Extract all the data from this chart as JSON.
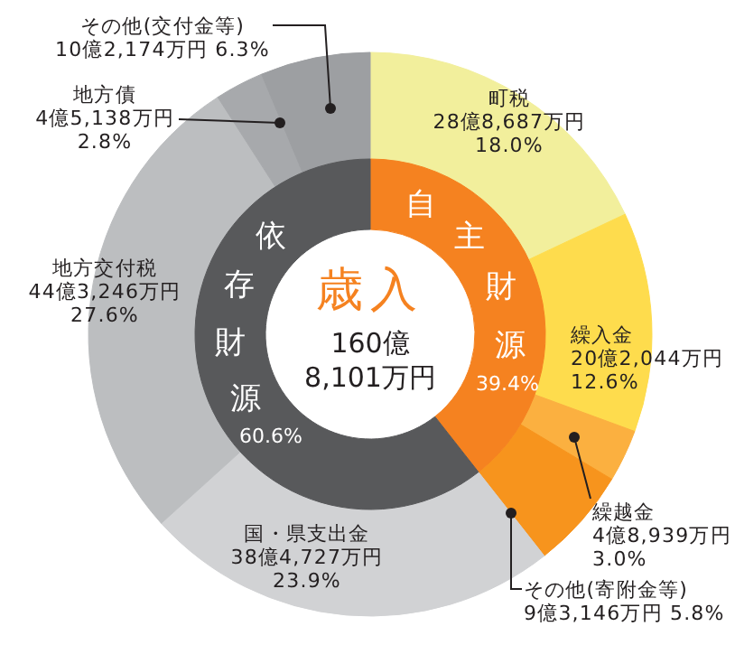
{
  "chart_data": [
    {
      "type": "donut",
      "title": "歳入",
      "annotations": [
        "160億\n8,101万円"
      ],
      "categories": [
        "自主財源",
        "依存財源"
      ],
      "values": [
        39.4,
        60.6
      ],
      "colors": [
        "#f58220",
        "#58595b"
      ],
      "value_labels": [
        "39.4%",
        "60.6%"
      ]
    },
    {
      "type": "donut",
      "categories": [
        "町税",
        "繰入金",
        "繰越金",
        "その他(寄附金等)",
        "国・県支出金",
        "地方交付税",
        "地方債",
        "その他(交付金等)"
      ],
      "values": [
        18.0,
        12.6,
        3.0,
        5.8,
        23.9,
        27.6,
        2.8,
        6.3
      ],
      "colors": [
        "#f2ef9c",
        "#fedc4d",
        "#fbb040",
        "#f7941d",
        "#d1d2d4",
        "#bcbec0",
        "#a7a9ac",
        "#9d9fa2"
      ],
      "value_labels": [
        "28億8,687万円\n18.0%",
        "20億2,044万円\n12.6%",
        "4億8,939万円\n3.0%",
        "9億3,146万円  5.8%",
        "38億4,727万円\n23.9%",
        "44億3,246万円\n27.6%",
        "4億5,138万円\n2.8%",
        "10億2,174万円  6.3%"
      ]
    }
  ]
}
